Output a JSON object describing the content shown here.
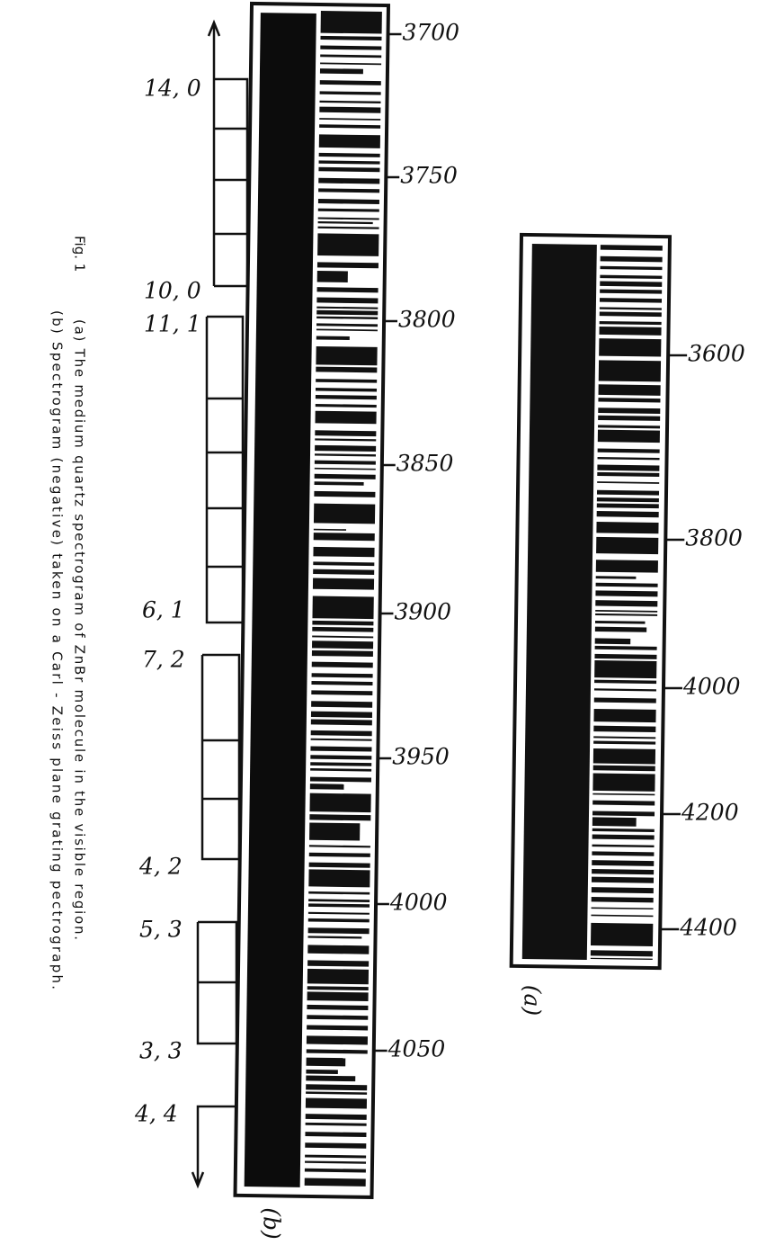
{
  "figure": {
    "label": "Fig. 1",
    "caption_a": "(a) The medium quartz spectrogram of ZnBr molecule in the visible region.",
    "caption_b": "(b) Spectrogram (negative) taken on a Carl - Zeiss plane grating pectrograph."
  },
  "panel_b": {
    "label": "(b)",
    "wavelengths": [
      3700,
      3750,
      3800,
      3850,
      3900,
      3950,
      4000,
      4050
    ],
    "band_heads": [
      "14, 0",
      "10, 0",
      "11, 1",
      "6, 1",
      "7, 2",
      "4, 2",
      "5, 3",
      "3, 3",
      "4, 4"
    ]
  },
  "panel_a": {
    "label": "(a)",
    "wavelengths": [
      3600,
      3800,
      4000,
      4200,
      4400
    ]
  }
}
